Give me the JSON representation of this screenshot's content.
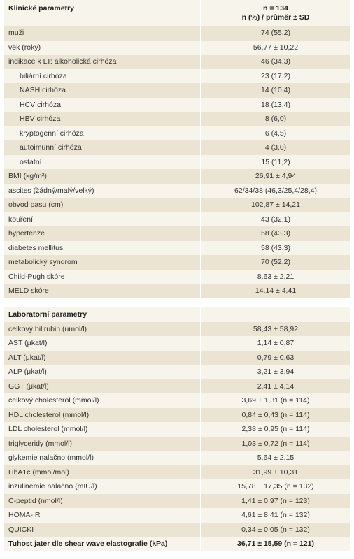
{
  "header": {
    "title": "Klinické parametry",
    "n": "n = 134",
    "subtitle": "n (%) / průměr ± SD"
  },
  "sections": [
    {
      "rows": [
        {
          "label": "muži",
          "value": "74 (55,2)"
        },
        {
          "label": "věk (roky)",
          "value": "56,77 ± 10,22"
        },
        {
          "label": "indikace k LT: alkoholická cirhóza",
          "value": "46 (34,3)"
        },
        {
          "label": "biliární cirhóza",
          "value": "23 (17,2)",
          "indent": true
        },
        {
          "label": "NASH cirhóza",
          "value": "14 (10,4)",
          "indent": true
        },
        {
          "label": "HCV cirhóza",
          "value": "18 (13,4)",
          "indent": true
        },
        {
          "label": "HBV cirhóza",
          "value": "8 (6,0)",
          "indent": true
        },
        {
          "label": "kryptogenní cirhóza",
          "value": "6 (4,5)",
          "indent": true
        },
        {
          "label": "autoimunní cirhóza",
          "value": "4 (3,0)",
          "indent": true
        },
        {
          "label": "ostatní",
          "value": "15 (11,2)",
          "indent": true
        },
        {
          "label": "BMI (kg/m²)",
          "value": "26,91 ± 4,94"
        },
        {
          "label": "ascites (žádný/malý/velký)",
          "value": "62/34/38 (46,3/25,4/28,4)"
        },
        {
          "label": "obvod pasu (cm)",
          "value": "102,87 ± 14,21"
        },
        {
          "label": "kouření",
          "value": "43 (32,1)"
        },
        {
          "label": "hypertenze",
          "value": "58 (43,3)"
        },
        {
          "label": "diabetes mellitus",
          "value": "58 (43,3)"
        },
        {
          "label": "metabolický syndrom",
          "value": "70 (52,2)"
        },
        {
          "label": "Child-Pugh skóre",
          "value": "8,63 ± 2,21"
        },
        {
          "label": "MELD skóre",
          "value": "14,14 ± 4,41"
        }
      ]
    },
    {
      "title": "Laboratorní parametry",
      "rows": [
        {
          "label": "celkový bilirubin (umol/l)",
          "value": "58,43 ± 58,92"
        },
        {
          "label": "AST (μkat/l)",
          "value": "1,14 ± 0,87"
        },
        {
          "label": "ALT (μkat/l)",
          "value": "0,79 ± 0,63"
        },
        {
          "label": "ALP (μkat/l)",
          "value": "3,21 ± 3,94"
        },
        {
          "label": "GGT (μkat/l)",
          "value": "2,41 ± 4,14"
        },
        {
          "label": "celkový cholesterol (mmol/l)",
          "value": "3,69 ± 1,31 (n = 114)"
        },
        {
          "label": "HDL cholesterol (mmol/l)",
          "value": "0,84 ± 0,43 (n = 114)"
        },
        {
          "label": "LDL cholesterol (mmol/l)",
          "value": "2,38 ± 0,95 (n = 114)"
        },
        {
          "label": "triglyceridy (mmol/l)",
          "value": "1,03 ± 0,72 (n = 114)"
        },
        {
          "label": "glykemie nalačno (mmol/l)",
          "value": "5,64 ± 2,15"
        },
        {
          "label": "HbA1c (mmol/mol)",
          "value": "31,99 ± 10,31"
        },
        {
          "label": "inzulinemie nalačno (mIU/l)",
          "value": "15,78 ± 17,35 (n = 132)"
        },
        {
          "label": "C-peptid (nmol/l)",
          "value": "1,41 ± 0,97 (n = 123)"
        },
        {
          "label": "HOMA-IR",
          "value": "4,61 ± 8,41 (n = 132)"
        },
        {
          "label": "QUICKI",
          "value": "0,34 ± 0,05 (n = 132)"
        },
        {
          "label": "Tuhost jater dle shear wave elastografie (kPa)",
          "value": "36,71 ± 15,59 (n = 121)",
          "bold": true
        }
      ]
    }
  ]
}
